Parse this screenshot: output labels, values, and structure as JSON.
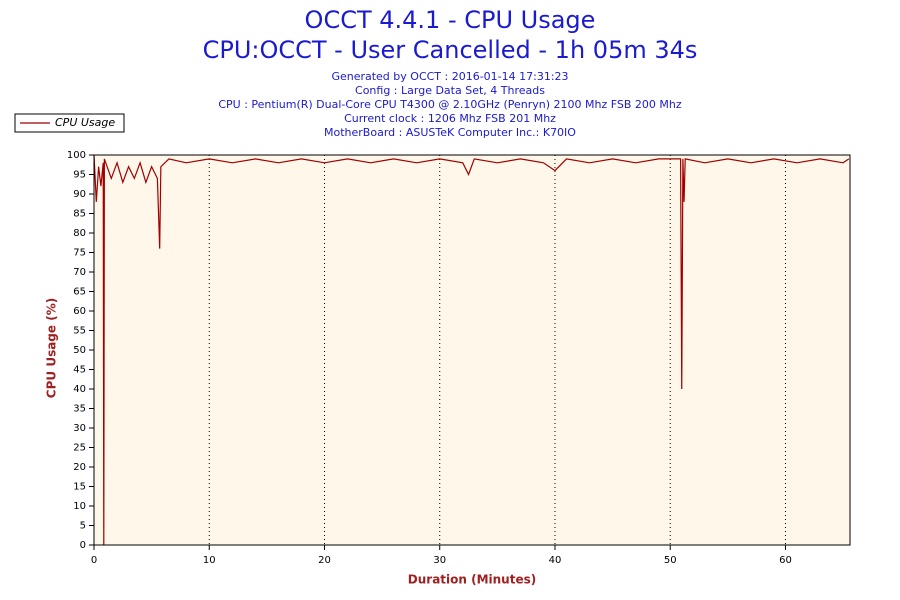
{
  "chart_data": {
    "type": "line",
    "title": "OCCT 4.4.1 - CPU Usage",
    "subtitle": "CPU:OCCT - User Cancelled - 1h 05m 34s",
    "info": [
      "Generated by OCCT : 2016-01-14 17:31:23",
      "Config : Large Data Set, 4 Threads",
      "CPU : Pentium(R) Dual-Core CPU T4300 @ 2.10GHz (Penryn) 2100 Mhz FSB 200 Mhz",
      "Current clock : 1206 Mhz FSB 201 Mhz",
      "MotherBoard : ASUSTeK Computer Inc.: K70IO"
    ],
    "x_label": "Duration (Minutes)",
    "y_label": "CPU Usage (%)",
    "x": [
      0,
      0.2,
      0.4,
      0.6,
      0.8,
      0.85,
      0.9,
      1.5,
      2,
      2.5,
      3,
      3.5,
      4,
      4.5,
      5,
      5.5,
      5.7,
      5.8,
      6.5,
      8,
      10,
      12,
      14,
      16,
      18,
      20,
      22,
      24,
      26,
      28,
      30,
      32,
      32.5,
      33,
      35,
      37,
      39,
      40,
      41,
      43,
      45,
      47,
      49,
      50.9,
      51,
      51.1,
      51.2,
      51.3,
      53,
      55,
      57,
      59,
      61,
      63,
      65,
      65.5
    ],
    "series": [
      {
        "name": "CPU Usage",
        "color": "#a00000",
        "values": [
          100,
          88,
          97,
          92,
          98,
          0,
          99,
          94,
          98,
          93,
          97,
          94,
          98,
          93,
          97,
          94,
          76,
          97,
          99,
          98,
          99,
          98,
          99,
          98,
          99,
          98,
          99,
          98,
          99,
          98,
          99,
          98,
          95,
          99,
          98,
          99,
          98,
          96,
          99,
          98,
          99,
          98,
          99,
          99,
          40,
          99,
          88,
          99,
          98,
          99,
          98,
          99,
          98,
          99,
          98,
          99
        ]
      }
    ],
    "xlim": [
      0,
      65.6
    ],
    "ylim": [
      0,
      100
    ],
    "xticks": [
      0,
      10,
      20,
      30,
      40,
      50,
      60
    ],
    "yticks": [
      0,
      5,
      10,
      15,
      20,
      25,
      30,
      35,
      40,
      45,
      50,
      55,
      60,
      65,
      70,
      75,
      80,
      85,
      90,
      95,
      100
    ],
    "grid": "x",
    "legend": "top-left",
    "plot_background": "#fff8ea"
  }
}
